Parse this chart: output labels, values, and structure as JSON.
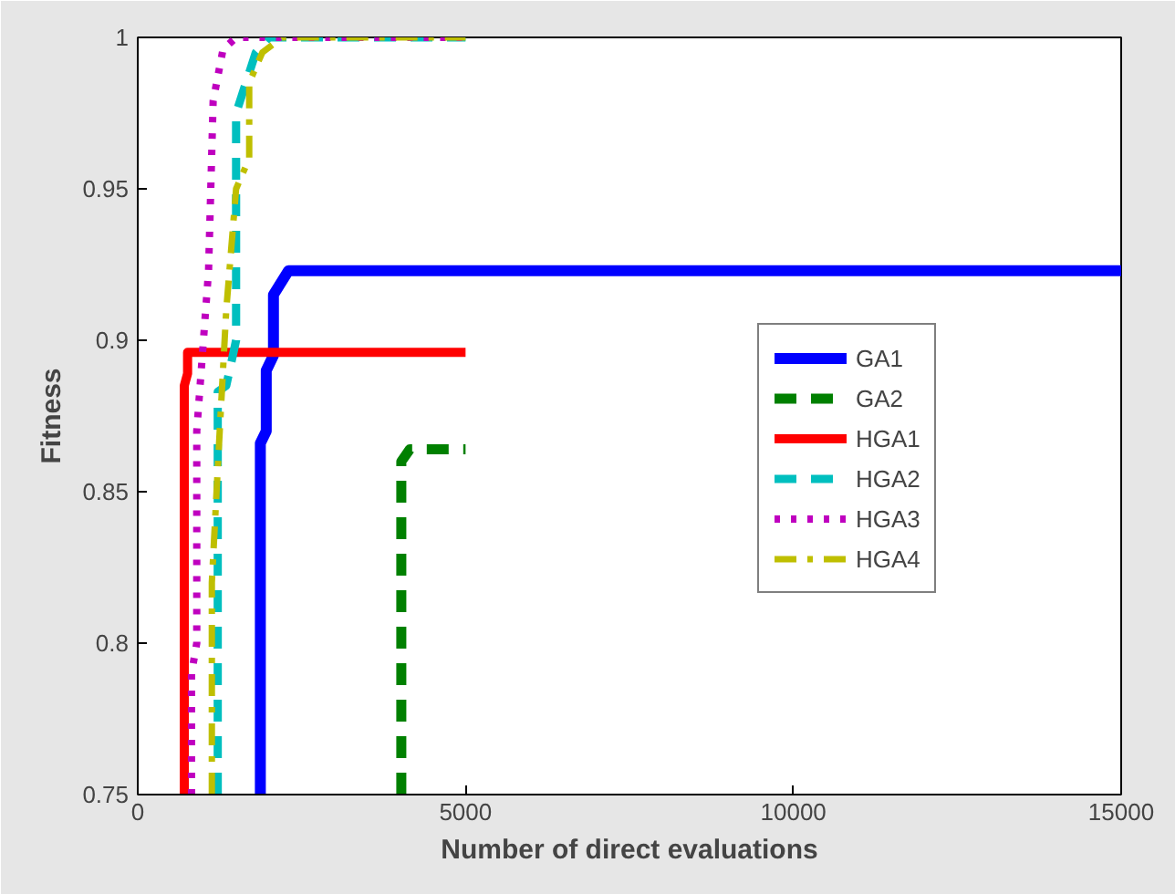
{
  "chart_data": {
    "type": "line",
    "xlabel": "Number of direct evaluations",
    "ylabel": "Fitness",
    "xlim": [
      0,
      15000
    ],
    "ylim": [
      0.75,
      1
    ],
    "xticks": [
      0,
      5000,
      10000,
      15000
    ],
    "yticks": [
      0.75,
      0.8,
      0.85,
      0.9,
      0.95,
      1
    ],
    "grid": false,
    "legend": "right",
    "marker": "none",
    "series": [
      {
        "name": "GA1",
        "color": "#0000ff",
        "line_style": "solid",
        "x": [
          1870,
          1870,
          1960,
          1960,
          2070,
          2070,
          2300,
          15000
        ],
        "values": [
          0.75,
          0.866,
          0.87,
          0.89,
          0.895,
          0.915,
          0.923,
          0.923
        ]
      },
      {
        "name": "GA2",
        "color": "#008000",
        "line_style": "dashed",
        "x": [
          4020,
          4020,
          4150,
          5000
        ],
        "values": [
          0.75,
          0.86,
          0.864,
          0.864
        ]
      },
      {
        "name": "HGA1",
        "color": "#ff0000",
        "line_style": "solid",
        "x": [
          710,
          710,
          760,
          760,
          5000
        ],
        "values": [
          0.75,
          0.885,
          0.889,
          0.896,
          0.896
        ]
      },
      {
        "name": "HGA2",
        "color": "#00bfbf",
        "line_style": "dashed",
        "x": [
          1220,
          1220,
          1350,
          1500,
          1500,
          1650,
          1800,
          2000,
          5000
        ],
        "values": [
          0.75,
          0.883,
          0.885,
          0.9,
          0.975,
          0.985,
          0.995,
          1,
          1
        ]
      },
      {
        "name": "HGA3",
        "color": "#bf00bf",
        "line_style": "dotted",
        "x": [
          820,
          820,
          900,
          900,
          1080,
          1150,
          1300,
          1500,
          5000
        ],
        "values": [
          0.75,
          0.79,
          0.8,
          0.87,
          0.923,
          0.979,
          0.996,
          1,
          1
        ]
      },
      {
        "name": "HGA4",
        "color": "#bfbf00",
        "line_style": "dashdot",
        "x": [
          1130,
          1130,
          1250,
          1350,
          1500,
          1700,
          1700,
          1900,
          2200,
          5000
        ],
        "values": [
          0.75,
          0.82,
          0.87,
          0.91,
          0.95,
          0.96,
          0.985,
          0.995,
          1,
          1
        ]
      }
    ]
  }
}
